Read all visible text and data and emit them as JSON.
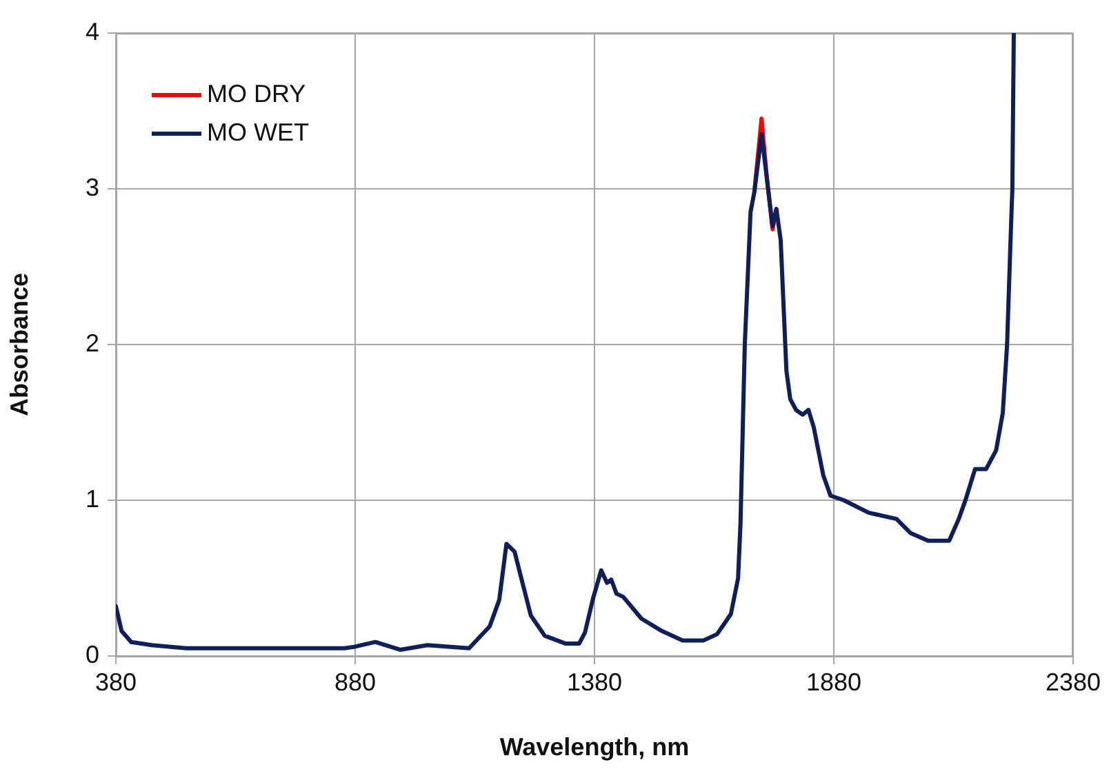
{
  "chart_data": {
    "type": "line",
    "xlabel": "Wavelength, nm",
    "ylabel": "Absorbance",
    "x": [
      380,
      392,
      412,
      455,
      527,
      858,
      880,
      922,
      974,
      1031,
      1118,
      1161,
      1181,
      1196,
      1213,
      1227,
      1247,
      1276,
      1319,
      1348,
      1360,
      1377,
      1394,
      1406,
      1415,
      1426,
      1440,
      1478,
      1521,
      1564,
      1608,
      1636,
      1654,
      1665,
      1680,
      1685,
      1694,
      1706,
      1714,
      1729,
      1740,
      1752,
      1760,
      1769,
      1781,
      1789,
      1801,
      1815,
      1827,
      1838,
      1858,
      1873,
      1901,
      1953,
      2011,
      2040,
      2077,
      2121,
      2141,
      2155,
      2175,
      2198,
      2219,
      2233,
      2242,
      2250,
      2253,
      2256
    ],
    "series": [
      {
        "name": "MO DRY",
        "color": "#ff0000",
        "values": [
          null,
          null,
          null,
          null,
          null,
          null,
          null,
          null,
          null,
          null,
          null,
          null,
          null,
          null,
          null,
          null,
          null,
          null,
          null,
          null,
          null,
          null,
          null,
          null,
          null,
          null,
          null,
          null,
          null,
          null,
          null,
          null,
          null,
          null,
          null,
          null,
          null,
          null,
          2.98,
          3.45,
          3.07,
          2.74,
          2.87,
          null,
          null,
          null,
          null,
          null,
          null,
          null,
          null,
          null,
          null,
          null,
          null,
          null,
          null,
          null,
          null,
          null,
          null,
          null,
          null,
          null,
          null,
          null,
          null,
          null
        ]
      },
      {
        "name": "MO WET",
        "color": "#0d1f5c",
        "values": [
          0.32,
          0.16,
          0.09,
          0.07,
          0.05,
          0.05,
          0.06,
          0.09,
          0.04,
          0.07,
          0.05,
          0.19,
          0.36,
          0.72,
          0.67,
          0.5,
          0.26,
          0.13,
          0.08,
          0.08,
          0.15,
          0.37,
          0.55,
          0.47,
          0.49,
          0.4,
          0.38,
          0.24,
          0.16,
          0.1,
          0.1,
          0.14,
          0.22,
          0.27,
          0.5,
          0.85,
          2.0,
          2.85,
          2.98,
          3.35,
          3.07,
          2.76,
          2.87,
          2.67,
          1.83,
          1.65,
          1.58,
          1.55,
          1.58,
          1.47,
          1.16,
          1.03,
          1.0,
          0.92,
          0.88,
          0.79,
          0.74,
          0.74,
          0.88,
          1.0,
          1.2,
          1.2,
          1.32,
          1.56,
          2.0,
          2.74,
          3.0,
          4.0
        ]
      }
    ],
    "xlim": [
      380,
      2380
    ],
    "xticks": [
      380,
      880,
      1380,
      1880,
      2380
    ],
    "ylim": [
      0,
      4
    ],
    "yticks": [
      0,
      1,
      2,
      3,
      4
    ],
    "grid": true,
    "legend": "top left",
    "marker": "none",
    "line_style": "solid"
  }
}
